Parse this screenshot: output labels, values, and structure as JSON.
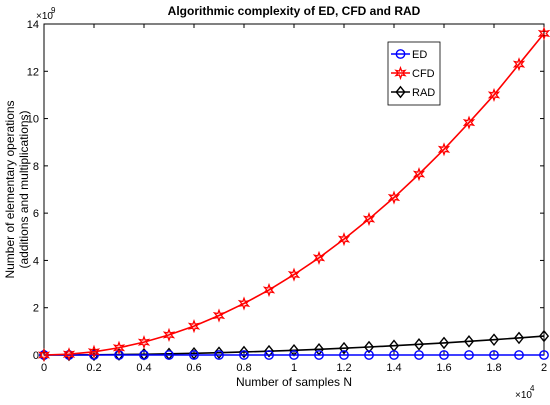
{
  "chart_data": {
    "type": "line",
    "title": "Algorithmic complexity of ED, CFD and RAD",
    "xlabel": "Number of samples N",
    "ylabel_lines": [
      "Number of elementary operations",
      "(additions and multiplications)"
    ],
    "x_multiplier": "×10",
    "x_exponent": "4",
    "y_multiplier": "×10",
    "y_exponent": "9",
    "xlim": [
      0,
      20000
    ],
    "ylim": [
      0,
      14
    ],
    "x_scale_divisor": 10000,
    "y_scale_divisor": 1,
    "xticks": [
      0,
      2000,
      4000,
      6000,
      8000,
      10000,
      12000,
      14000,
      16000,
      18000,
      20000
    ],
    "xtick_labels": [
      "0",
      "0.2",
      "0.4",
      "0.6",
      "0.8",
      "1",
      "1.2",
      "1.4",
      "1.6",
      "1.8",
      "2"
    ],
    "yticks": [
      0,
      2,
      4,
      6,
      8,
      10,
      12,
      14
    ],
    "ytick_labels": [
      "0",
      "2",
      "4",
      "6",
      "8",
      "10",
      "12",
      "14"
    ],
    "grid": false,
    "legend_position": "top-right",
    "x": [
      0,
      1000,
      2000,
      3000,
      4000,
      5000,
      6000,
      7000,
      8000,
      9000,
      10000,
      11000,
      12000,
      13000,
      14000,
      15000,
      16000,
      17000,
      18000,
      19000,
      20000
    ],
    "series": [
      {
        "name": "ED",
        "color": "#0000ff",
        "marker": "circle",
        "values": [
          0,
          0.0,
          0.0,
          0.0,
          0.0,
          0.0,
          0.0,
          0.0,
          0.0,
          0.0,
          0.0,
          0.0,
          0.0,
          0.0,
          0.0,
          0.0,
          0.0,
          0.0,
          0.0,
          0.0,
          0.0
        ]
      },
      {
        "name": "CFD",
        "color": "#ff0000",
        "marker": "hexagram",
        "values": [
          0,
          0.034,
          0.136,
          0.306,
          0.544,
          0.85,
          1.22,
          1.67,
          2.18,
          2.75,
          3.4,
          4.11,
          4.9,
          5.75,
          6.66,
          7.65,
          8.7,
          9.83,
          11.0,
          12.3,
          13.6
        ]
      },
      {
        "name": "RAD",
        "color": "#000000",
        "marker": "diamond",
        "values": [
          0,
          0.002,
          0.008,
          0.018,
          0.032,
          0.05,
          0.072,
          0.098,
          0.128,
          0.162,
          0.2,
          0.242,
          0.288,
          0.338,
          0.392,
          0.45,
          0.512,
          0.578,
          0.648,
          0.722,
          0.8
        ]
      }
    ]
  }
}
